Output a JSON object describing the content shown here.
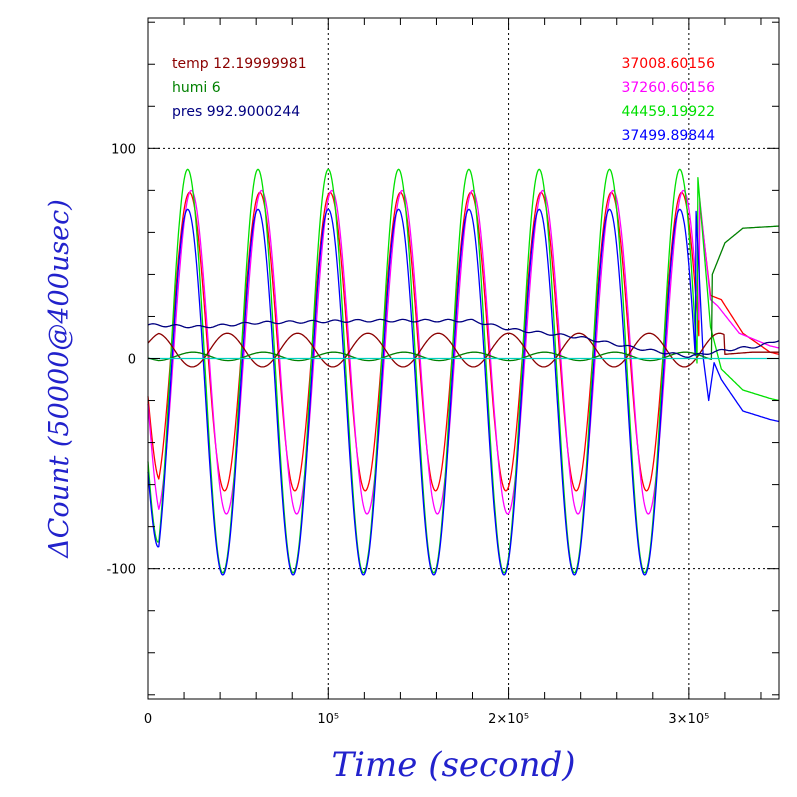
{
  "chart_data": {
    "type": "line",
    "xlabel": "Time (second)",
    "ylabel": "ΔCount (50000@400usec)",
    "xlim": [
      0,
      350000
    ],
    "ylim": [
      -162,
      162
    ],
    "grid": true,
    "x_ticks": [
      {
        "value": 0,
        "label": "0"
      },
      {
        "value": 100000,
        "label": "10⁵"
      },
      {
        "value": 200000,
        "label": "2×10⁵"
      },
      {
        "value": 300000,
        "label": "3×10⁵"
      }
    ],
    "y_ticks": [
      {
        "value": 100,
        "label": "100"
      },
      {
        "value": 0,
        "label": "0"
      },
      {
        "value": -100,
        "label": "-100"
      }
    ],
    "legend_left": [
      {
        "label": "temp 12.19999981",
        "color": "#8b0000"
      },
      {
        "label": "humi 6",
        "color": "#008000"
      },
      {
        "label": "pres 992.9000244",
        "color": "#000080"
      }
    ],
    "legend_right": [
      {
        "label": "37008.60156",
        "color": "#ff0000"
      },
      {
        "label": "37260.60156",
        "color": "#ff00ff"
      },
      {
        "label": "44459.19922",
        "color": "#00e000"
      },
      {
        "label": "37499.89844",
        "color": "#0000ff"
      }
    ],
    "oscillation_period": 39000,
    "series": [
      {
        "color": "#ff0000",
        "center": 8,
        "amplitude": 71,
        "phase_peak_x": 23000,
        "after": [
          [
            306000,
            74
          ],
          [
            312000,
            30
          ],
          [
            318000,
            28
          ],
          [
            330000,
            12
          ],
          [
            345000,
            3
          ],
          [
            350000,
            2
          ]
        ]
      },
      {
        "color": "#ff00ff",
        "center": 3,
        "amplitude": 77,
        "phase_peak_x": 24000,
        "after": [
          [
            306000,
            76
          ],
          [
            312000,
            28
          ],
          [
            316000,
            25
          ],
          [
            328000,
            12
          ],
          [
            345000,
            6
          ],
          [
            350000,
            5
          ]
        ]
      },
      {
        "color": "#00e000",
        "center": -6,
        "amplitude": 96,
        "phase_peak_x": 22000,
        "after": [
          [
            305000,
            86
          ],
          [
            312000,
            15
          ],
          [
            318000,
            -5
          ],
          [
            330000,
            -15
          ],
          [
            345000,
            -19
          ],
          [
            350000,
            -20
          ]
        ]
      },
      {
        "color": "#0000ff",
        "center": -16,
        "amplitude": 87,
        "phase_peak_x": 22000,
        "after": [
          [
            304000,
            70
          ],
          [
            308000,
            0
          ],
          [
            311000,
            -20
          ],
          [
            314000,
            -2
          ],
          [
            318000,
            -10
          ],
          [
            330000,
            -25
          ],
          [
            345000,
            -29
          ],
          [
            350000,
            -30
          ]
        ]
      },
      {
        "color": "#8b0000",
        "center": 4,
        "amplitude": 8,
        "phase_peak_x": 5000,
        "after": [
          [
            320000,
            2
          ],
          [
            335000,
            3
          ],
          [
            350000,
            3
          ]
        ]
      },
      {
        "color": "#008000",
        "center": 1,
        "amplitude": 2,
        "phase_peak_x": 25000,
        "after": [
          [
            313000,
            40
          ],
          [
            320000,
            55
          ],
          [
            330000,
            62
          ],
          [
            350000,
            63
          ]
        ]
      },
      {
        "color": "#000080",
        "drift": [
          [
            0,
            16
          ],
          [
            30000,
            15
          ],
          [
            60000,
            17
          ],
          [
            120000,
            18
          ],
          [
            180000,
            18
          ],
          [
            200000,
            14
          ],
          [
            240000,
            10
          ],
          [
            270000,
            5
          ],
          [
            300000,
            1
          ],
          [
            320000,
            4
          ],
          [
            340000,
            6
          ],
          [
            350000,
            9
          ]
        ]
      },
      {
        "color": "#00d0c0",
        "flat": 0
      }
    ]
  }
}
